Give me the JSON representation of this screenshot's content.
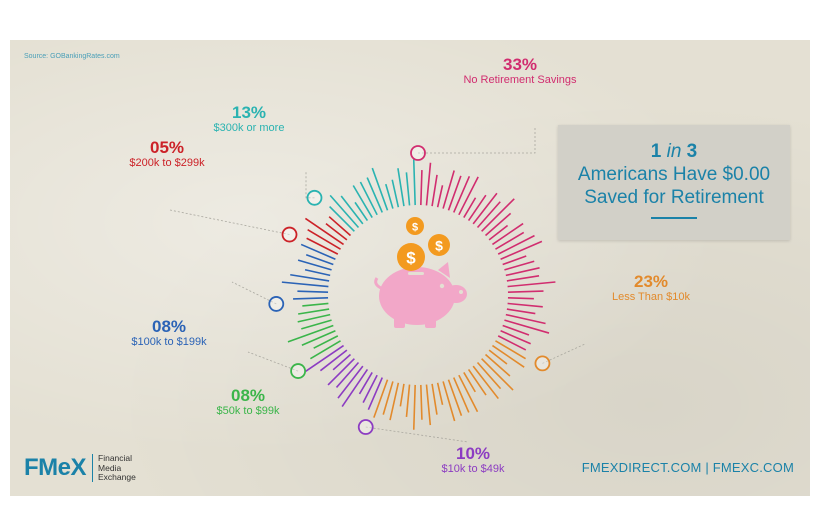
{
  "source": "Source: GOBankingRates.com",
  "chart_data": {
    "type": "radial-bar",
    "title": "",
    "slices": [
      {
        "label": "No Retirement Savings",
        "value": 33,
        "percent_label": "33%",
        "color": "#d12d6f"
      },
      {
        "label": "Less Than $10k",
        "value": 23,
        "percent_label": "23%",
        "color": "#e28a2c"
      },
      {
        "label": "$10k to $49k",
        "value": 10,
        "percent_label": "10%",
        "color": "#8c3cc2"
      },
      {
        "label": "$50k to $99k",
        "value": 8,
        "percent_label": "08%",
        "color": "#3bb54a"
      },
      {
        "label": "$100k to $199k",
        "value": 8,
        "percent_label": "08%",
        "color": "#2b63b6"
      },
      {
        "label": "$200k to $299k",
        "value": 5,
        "percent_label": "05%",
        "color": "#cc2228"
      },
      {
        "label": "$300k or more",
        "value": 13,
        "percent_label": "13%",
        "color": "#2ab3b1"
      }
    ]
  },
  "callout": {
    "line1_num": "1",
    "line1_in": "in",
    "line1_num2": "3",
    "line2": "Americans Have $0.00",
    "line3": "Saved for Retirement"
  },
  "center_icon": {
    "name": "piggy-bank-icon",
    "color": "#f2a7c8",
    "coin_color": "#f39a1f",
    "coin_symbol": "$"
  },
  "brand": {
    "logo": "FMeX",
    "subtitle_lines": [
      "Financial",
      "Media",
      "Exchange"
    ],
    "website": "FMEXDIRECT.COM | FMEXC.COM"
  }
}
